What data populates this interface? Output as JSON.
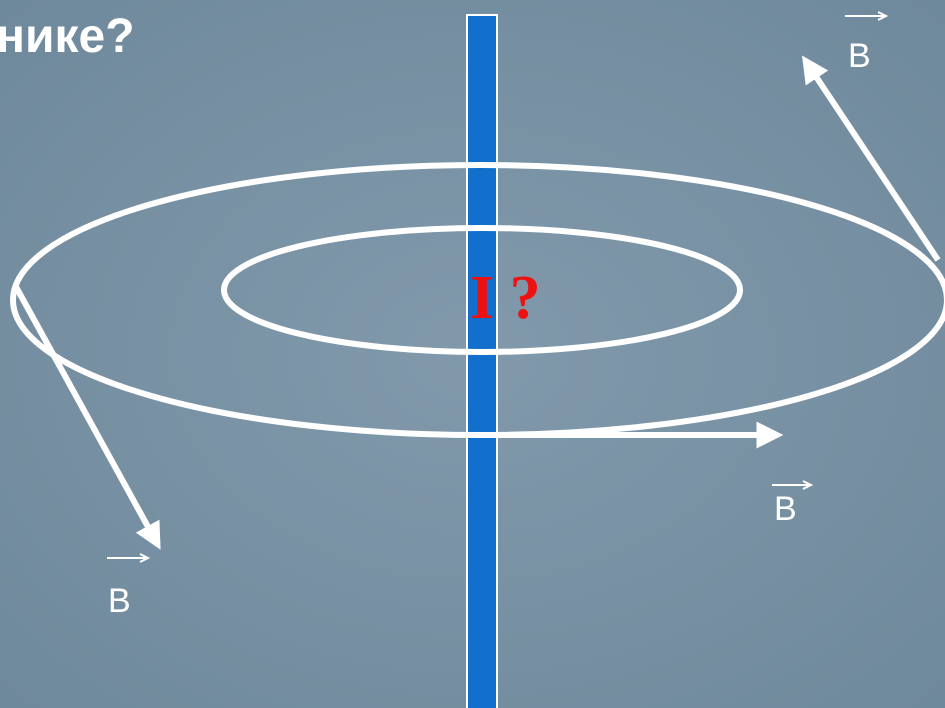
{
  "title": "нике?",
  "current_label": "I ?",
  "field_labels": [
    "B",
    "B",
    "B"
  ]
}
